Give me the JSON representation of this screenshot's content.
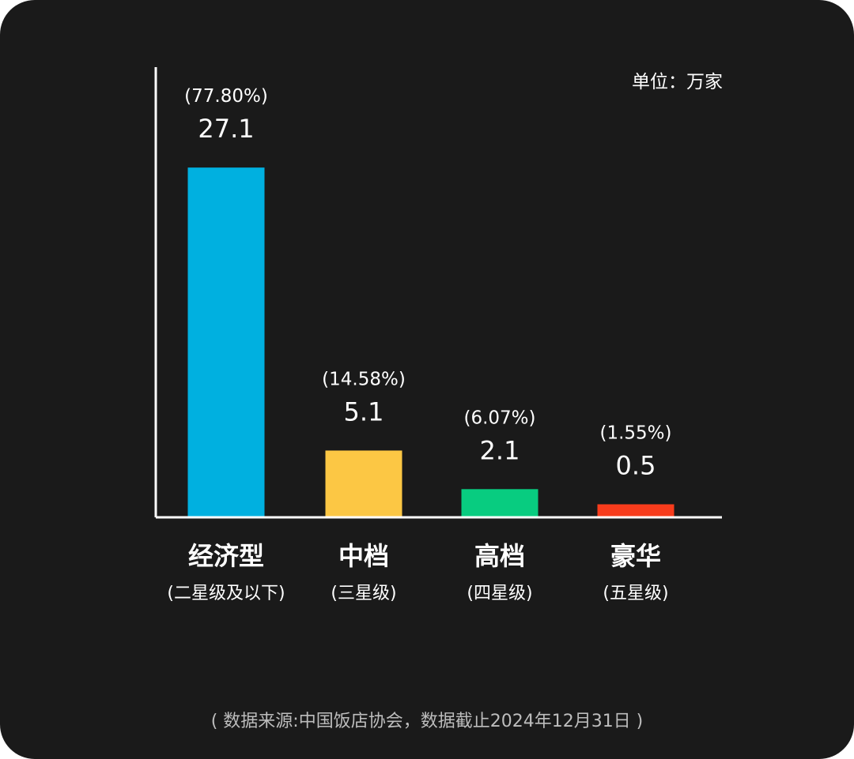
{
  "chart_data": {
    "type": "bar",
    "unit_label": "单位：万家",
    "categories": [
      "经济型",
      "中档",
      "高档",
      "豪华"
    ],
    "subcategories": [
      "(二星级及以下)",
      "(三星级)",
      "(四星级)",
      "(五星级)"
    ],
    "values": [
      27.1,
      5.1,
      2.1,
      0.5
    ],
    "value_labels": [
      "27.1",
      "5.1",
      "2.1",
      "0.5"
    ],
    "percent_labels": [
      "(77.80%)",
      "(14.58%)",
      "(6.07%)",
      "(1.55%)"
    ],
    "colors": [
      "#00b0e0",
      "#fcc744",
      "#08cc80",
      "#f83c1c"
    ],
    "ylim": [
      0,
      35
    ],
    "grid": false,
    "source": "( 数据来源:中国饭店协会，数据截止2024年12月31日 )"
  }
}
